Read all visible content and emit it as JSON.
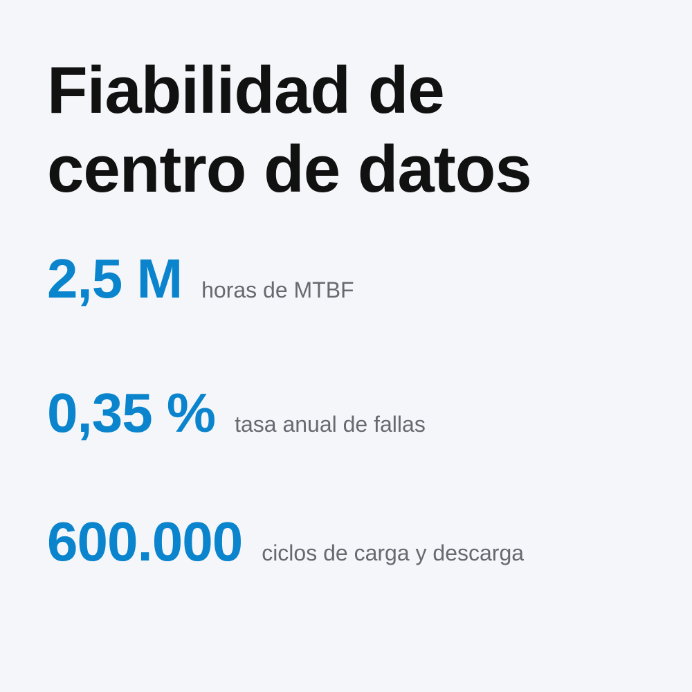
{
  "title": "Fiabilidad de centro de datos",
  "stats": [
    {
      "value": "2,5 M",
      "label": "horas de MTBF"
    },
    {
      "value": "0,35 %",
      "label": "tasa anual de fallas"
    },
    {
      "value": "600.000",
      "label": "ciclos de carga y descarga"
    }
  ]
}
